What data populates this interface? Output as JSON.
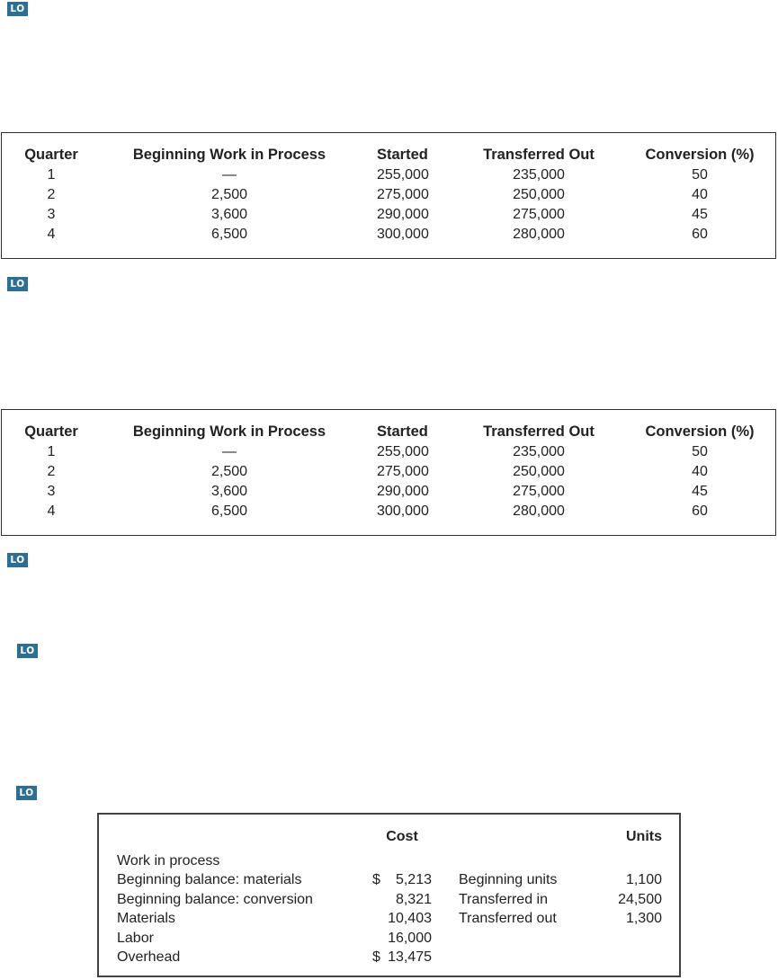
{
  "lo_badge": {
    "label": "LO",
    "bg_color": "#2d6f92",
    "text_color": "#ffffff"
  },
  "wip_table": {
    "headers": [
      "Quarter",
      "Beginning Work in Process",
      "Started",
      "Transferred Out",
      "Conversion (%)"
    ],
    "rows": [
      [
        "1",
        "—",
        "255,000",
        "235,000",
        "50"
      ],
      [
        "2",
        "2,500",
        "275,000",
        "250,000",
        "40"
      ],
      [
        "3",
        "3,600",
        "290,000",
        "275,000",
        "45"
      ],
      [
        "4",
        "6,500",
        "300,000",
        "280,000",
        "60"
      ]
    ]
  },
  "cost_units_table": {
    "cost_header": "Cost",
    "units_header": "Units",
    "section_label": "Work in process",
    "cost_rows": [
      {
        "label": "Beginning balance: materials",
        "prefix": "$",
        "amount": "5,213"
      },
      {
        "label": "Beginning balance: conversion",
        "prefix": "",
        "amount": "8,321"
      },
      {
        "label": "Materials",
        "prefix": "",
        "amount": "10,403"
      },
      {
        "label": "Labor",
        "prefix": "",
        "amount": "16,000"
      },
      {
        "label": "Overhead",
        "prefix": "$",
        "amount": "13,475"
      }
    ],
    "units_rows": [
      {
        "label": "Beginning units",
        "amount": "1,100"
      },
      {
        "label": "Transferred in",
        "amount": "24,500"
      },
      {
        "label": "Transferred out",
        "amount": "1,300"
      }
    ]
  }
}
